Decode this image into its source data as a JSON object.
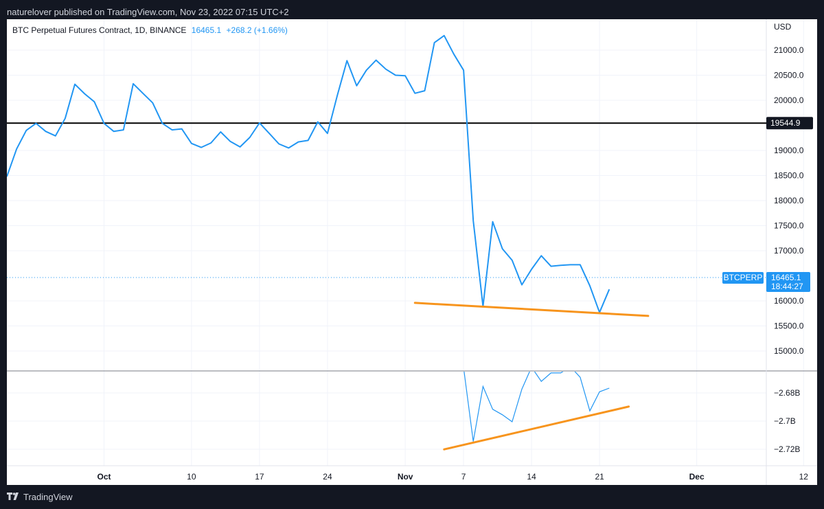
{
  "header": {
    "published_text": "naturelover published on TradingView.com, Nov 23, 2022 07:15 UTC+2"
  },
  "legend": {
    "symbol": "BTC Perpetual Futures Contract, 1D, BINANCE",
    "last": "16465.1",
    "change": "+268.2 (+1.66%)"
  },
  "price_axis": {
    "currency": "USD",
    "ticks": [
      "21000.0",
      "20500.0",
      "20000.0",
      "19000.0",
      "18500.0",
      "18000.0",
      "17500.0",
      "17000.0",
      "16000.0",
      "15500.0",
      "15000.0"
    ]
  },
  "horizontal_line": {
    "value": 19544.9,
    "label": "19544.9"
  },
  "current_price": {
    "symbol_label": "BTCPERP",
    "price": "16465.1",
    "countdown": "18:44:27"
  },
  "indicator_axis": {
    "ticks": [
      "−2.68B",
      "−2.7B",
      "−2.72B"
    ]
  },
  "time_axis": {
    "ticks": [
      "Oct",
      "10",
      "17",
      "24",
      "Nov",
      "7",
      "14",
      "21",
      "Dec",
      "12"
    ]
  },
  "footer": {
    "brand": "TradingView"
  },
  "colors": {
    "price_line": "#2196f3",
    "trend_line": "#f7941d",
    "level_line": "#000000",
    "badge": "#2196f3",
    "grid": "#f0f3fa",
    "background": "#ffffff",
    "frame": "#131722"
  },
  "chart_data": [
    {
      "type": "line",
      "title": "BTC Perpetual Futures Contract, 1D, BINANCE",
      "ylabel": "USD",
      "ylim": [
        14800,
        21400
      ],
      "x": [
        "2022-09-21",
        "2022-09-22",
        "2022-09-23",
        "2022-09-24",
        "2022-09-25",
        "2022-09-26",
        "2022-09-27",
        "2022-09-28",
        "2022-09-29",
        "2022-09-30",
        "2022-10-01",
        "2022-10-02",
        "2022-10-03",
        "2022-10-04",
        "2022-10-05",
        "2022-10-06",
        "2022-10-07",
        "2022-10-08",
        "2022-10-09",
        "2022-10-10",
        "2022-10-11",
        "2022-10-12",
        "2022-10-13",
        "2022-10-14",
        "2022-10-15",
        "2022-10-16",
        "2022-10-17",
        "2022-10-18",
        "2022-10-19",
        "2022-10-20",
        "2022-10-21",
        "2022-10-22",
        "2022-10-23",
        "2022-10-24",
        "2022-10-25",
        "2022-10-26",
        "2022-10-27",
        "2022-10-28",
        "2022-10-29",
        "2022-10-30",
        "2022-10-31",
        "2022-11-01",
        "2022-11-02",
        "2022-11-03",
        "2022-11-04",
        "2022-11-05",
        "2022-11-06",
        "2022-11-07",
        "2022-11-08",
        "2022-11-09",
        "2022-11-10",
        "2022-11-11",
        "2022-11-12",
        "2022-11-13",
        "2022-11-14",
        "2022-11-15",
        "2022-11-16",
        "2022-11-17",
        "2022-11-18",
        "2022-11-19",
        "2022-11-20",
        "2022-11-21",
        "2022-11-22"
      ],
      "series": [
        {
          "values": [
            18480,
            19030,
            19400,
            19540,
            19380,
            19290,
            19640,
            20320,
            20130,
            19970,
            19540,
            19380,
            19410,
            20330,
            20140,
            19950,
            19540,
            19410,
            19430,
            19140,
            19060,
            19150,
            19370,
            19180,
            19070,
            19260,
            19550,
            19340,
            19130,
            19050,
            19170,
            19200,
            19570,
            19340,
            20090,
            20790,
            20290,
            20600,
            20800,
            20620,
            20500,
            20490,
            20140,
            20190,
            21150,
            21290,
            20920,
            20600,
            17600,
            15890,
            17580,
            17040,
            16810,
            16320,
            16630,
            16900,
            16690,
            16710,
            16720,
            16720,
            16300,
            15770,
            16230
          ],
          "last": 16465.1
        }
      ],
      "horizontal_lines": [
        19544.9
      ],
      "annotations": [
        {
          "type": "trendline",
          "from": [
            "2022-11-02",
            15960
          ],
          "to": [
            "2022-11-26",
            15700
          ]
        }
      ]
    },
    {
      "type": "line",
      "ylim": [
        -2.7268,
        -2.6614
      ],
      "x": [
        "2022-11-07",
        "2022-11-08",
        "2022-11-09",
        "2022-11-10",
        "2022-11-11",
        "2022-11-12",
        "2022-11-13",
        "2022-11-14",
        "2022-11-15",
        "2022-11-16",
        "2022-11-17",
        "2022-11-18",
        "2022-11-19",
        "2022-11-20",
        "2022-11-21",
        "2022-11-22"
      ],
      "series": [
        {
          "values": [
            -2.662,
            -2.7145,
            -2.6754,
            -2.6916,
            -2.6955,
            -2.7005,
            -2.6773,
            -2.6617,
            -2.6718,
            -2.6658,
            -2.6658,
            -2.6614,
            -2.6689,
            -2.6928,
            -2.6792,
            -2.6766
          ]
        }
      ],
      "annotations": [
        {
          "type": "trendline",
          "from": [
            "2022-11-05",
            -2.7201
          ],
          "to": [
            "2022-11-24",
            -2.6897
          ]
        }
      ]
    }
  ]
}
